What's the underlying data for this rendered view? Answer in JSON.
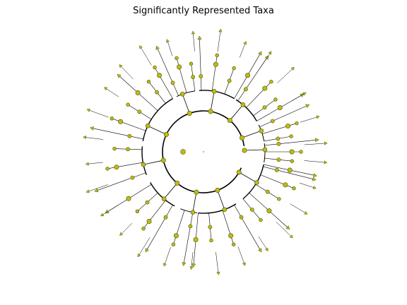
{
  "figure": {
    "title": "Significantly Represented Taxa"
  },
  "colors": {
    "background": "#ffffff",
    "branch": "#000000",
    "node_fill": "#bcbc14",
    "node_edge": "#555500",
    "text": "#000000"
  },
  "tree": {
    "layout": "circular cladogram",
    "node_shape": "circle",
    "tip_shape": "triangle",
    "labels_shown": false
  }
}
